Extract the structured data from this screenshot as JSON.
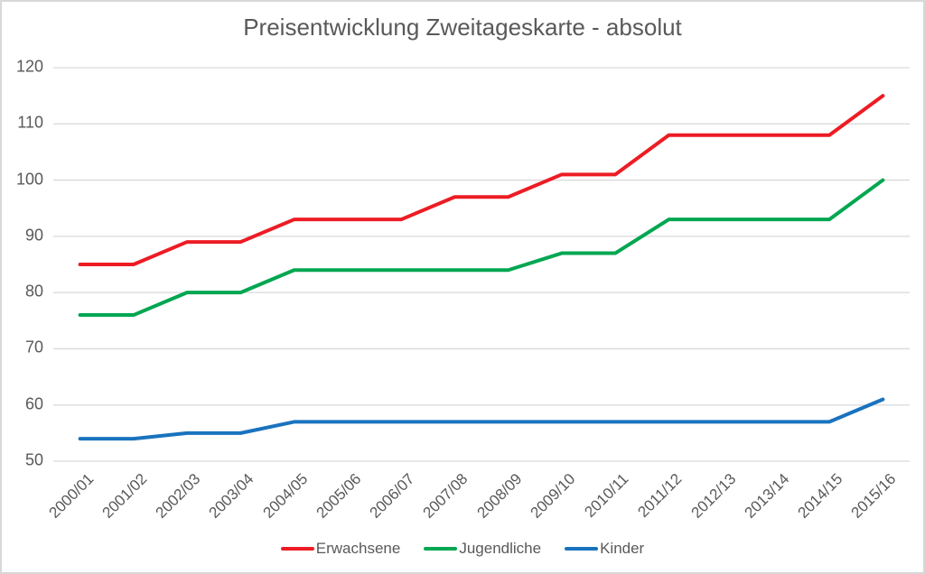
{
  "chart_data": {
    "type": "line",
    "title": "Preisentwicklung Zweitageskarte - absolut",
    "categories": [
      "2000/01",
      "2001/02",
      "2002/03",
      "2003/04",
      "2004/05",
      "2005/06",
      "2006/07",
      "2007/08",
      "2008/09",
      "2009/10",
      "2010/11",
      "2011/12",
      "2012/13",
      "2013/14",
      "2014/15",
      "2015/16"
    ],
    "series": [
      {
        "name": "Erwachsene",
        "color": "#ED1C24",
        "values": [
          85,
          85,
          89,
          89,
          93,
          93,
          93,
          97,
          97,
          101,
          101,
          108,
          108,
          108,
          108,
          115
        ]
      },
      {
        "name": "Jugendliche",
        "color": "#00A651",
        "values": [
          76,
          76,
          80,
          80,
          84,
          84,
          84,
          84,
          84,
          87,
          87,
          93,
          93,
          93,
          93,
          100
        ]
      },
      {
        "name": "Kinder",
        "color": "#1973BE",
        "values": [
          54,
          54,
          55,
          55,
          57,
          57,
          57,
          57,
          57,
          57,
          57,
          57,
          57,
          57,
          57,
          61
        ]
      }
    ],
    "ylim": [
      50,
      120
    ],
    "ytick_step": 10,
    "yticks": [
      50,
      60,
      70,
      80,
      90,
      100,
      110,
      120
    ],
    "xlabel": "",
    "ylabel": "",
    "grid": true,
    "legend_position": "bottom",
    "colors": {
      "grid": "#D9D9D9",
      "text": "#595959",
      "border": "#D8D8D8",
      "background": "#FFFFFF"
    }
  }
}
